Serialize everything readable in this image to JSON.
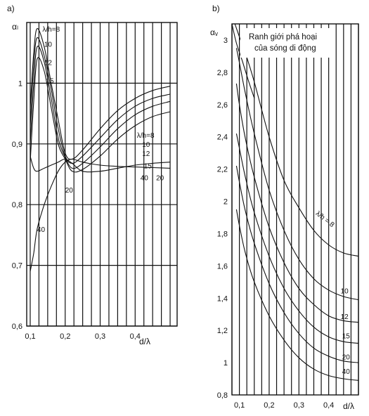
{
  "chart_data": [
    {
      "type": "line",
      "panel_label": "a)",
      "ylabel": "αₗ",
      "xlabel": "d/λ",
      "xlim": [
        0.09,
        0.52
      ],
      "ylim": [
        0.6,
        1.1
      ],
      "x_ticks": [
        0.1,
        0.2,
        0.3,
        0.4
      ],
      "x_tick_labels": [
        "0,1",
        "0,2",
        "0,3",
        "0,4"
      ],
      "y_ticks": [
        0.6,
        0.7,
        0.8,
        0.9,
        1.0
      ],
      "y_tick_labels": [
        "0,6",
        "0,7",
        "0,8",
        "0,9",
        "1"
      ],
      "x_grid": [
        0.1,
        0.125,
        0.15,
        0.175,
        0.2,
        0.225,
        0.25,
        0.275,
        0.3,
        0.325,
        0.35,
        0.375,
        0.4,
        0.425,
        0.45,
        0.475,
        0.5
      ],
      "y_grid": [
        0.6,
        0.7,
        0.8,
        0.9,
        1.0
      ],
      "grid": true,
      "family_labels": [
        "λ/h=8",
        "λ/h=8"
      ],
      "series": [
        {
          "name": "8",
          "x": [
            0.1,
            0.11,
            0.12,
            0.14,
            0.16,
            0.18,
            0.2,
            0.22,
            0.25,
            0.3,
            0.35,
            0.4,
            0.45,
            0.5
          ],
          "y": [
            0.96,
            1.05,
            1.09,
            1.06,
            1.0,
            0.94,
            0.885,
            0.875,
            0.89,
            0.925,
            0.955,
            0.975,
            0.988,
            0.995
          ]
        },
        {
          "name": "10",
          "x": [
            0.1,
            0.11,
            0.12,
            0.14,
            0.16,
            0.18,
            0.2,
            0.22,
            0.25,
            0.3,
            0.35,
            0.4,
            0.45,
            0.5
          ],
          "y": [
            0.93,
            1.03,
            1.075,
            1.045,
            0.99,
            0.925,
            0.88,
            0.868,
            0.88,
            0.91,
            0.94,
            0.962,
            0.975,
            0.982
          ]
        },
        {
          "name": "12",
          "x": [
            0.1,
            0.11,
            0.12,
            0.14,
            0.16,
            0.18,
            0.2,
            0.22,
            0.25,
            0.3,
            0.35,
            0.4,
            0.45,
            0.5
          ],
          "y": [
            0.9,
            1.0,
            1.06,
            1.035,
            0.975,
            0.91,
            0.878,
            0.86,
            0.868,
            0.895,
            0.925,
            0.948,
            0.962,
            0.97
          ]
        },
        {
          "name": "15",
          "x": [
            0.1,
            0.11,
            0.12,
            0.14,
            0.16,
            0.18,
            0.2,
            0.22,
            0.25,
            0.3,
            0.35,
            0.4,
            0.45,
            0.5
          ],
          "y": [
            0.87,
            0.97,
            1.04,
            1.02,
            0.96,
            0.9,
            0.875,
            0.855,
            0.858,
            0.88,
            0.908,
            0.93,
            0.945,
            0.953
          ]
        },
        {
          "name": "20",
          "x": [
            0.1,
            0.11,
            0.12,
            0.14,
            0.16,
            0.18,
            0.2,
            0.22,
            0.25,
            0.3,
            0.35,
            0.4,
            0.45,
            0.5
          ],
          "y": [
            0.88,
            0.86,
            0.855,
            0.86,
            0.865,
            0.87,
            0.875,
            0.868,
            0.855,
            0.855,
            0.86,
            0.865,
            0.868,
            0.87
          ]
        },
        {
          "name": "40",
          "x": [
            0.1,
            0.11,
            0.12,
            0.14,
            0.16,
            0.18,
            0.2,
            0.22,
            0.25,
            0.3,
            0.35,
            0.4,
            0.45,
            0.5
          ],
          "y": [
            0.69,
            0.72,
            0.76,
            0.8,
            0.83,
            0.855,
            0.87,
            0.875,
            0.87,
            0.865,
            0.863,
            0.862,
            0.861,
            0.86
          ]
        }
      ]
    },
    {
      "type": "line",
      "panel_label": "b)",
      "ylabel": "αᵥ",
      "xlabel": "d/λ",
      "xlim": [
        0.075,
        0.5
      ],
      "ylim": [
        0.8,
        3.1
      ],
      "x_ticks": [
        0.1,
        0.2,
        0.3,
        0.4
      ],
      "x_tick_labels": [
        "0,1",
        "0,2",
        "0,3",
        "0,4"
      ],
      "y_ticks": [
        0.8,
        1.0,
        1.2,
        1.4,
        1.6,
        1.8,
        2.0,
        2.2,
        2.4,
        2.6,
        2.8,
        3.0
      ],
      "y_tick_labels": [
        "0,8",
        "1",
        "1,2",
        "1,4",
        "1,6",
        "1,8",
        "2",
        "2,2",
        "2,4",
        "2,6",
        "2,8",
        "3"
      ],
      "x_grid": [
        0.075,
        0.1,
        0.125,
        0.15,
        0.175,
        0.2,
        0.225,
        0.25,
        0.275,
        0.3,
        0.325,
        0.35,
        0.375,
        0.4,
        0.425,
        0.45,
        0.475,
        0.5
      ],
      "y_grid": [],
      "grid": true,
      "annotation": "Ranh giới phá hoại\ncủa sóng di động",
      "family_label": "λ/h = 8",
      "series": [
        {
          "name": "envelope",
          "x": [
            0.075,
            0.09,
            0.11,
            0.13,
            0.15
          ],
          "y": [
            3.1,
            2.98,
            2.87,
            2.75,
            2.64
          ]
        },
        {
          "name": "8",
          "x": [
            0.085,
            0.1,
            0.12,
            0.15,
            0.2,
            0.25,
            0.3,
            0.35,
            0.4,
            0.45,
            0.5
          ],
          "y": [
            3.1,
            3.02,
            2.92,
            2.74,
            2.4,
            2.13,
            1.96,
            1.82,
            1.73,
            1.68,
            1.66
          ]
        },
        {
          "name": "10",
          "x": [
            0.09,
            0.1,
            0.12,
            0.15,
            0.2,
            0.25,
            0.3,
            0.35,
            0.4,
            0.45,
            0.5
          ],
          "y": [
            2.95,
            2.86,
            2.67,
            2.42,
            2.07,
            1.82,
            1.64,
            1.52,
            1.45,
            1.41,
            1.39
          ]
        },
        {
          "name": "12",
          "x": [
            0.09,
            0.1,
            0.12,
            0.15,
            0.2,
            0.25,
            0.3,
            0.35,
            0.4,
            0.45,
            0.5
          ],
          "y": [
            2.73,
            2.6,
            2.39,
            2.15,
            1.84,
            1.62,
            1.46,
            1.36,
            1.29,
            1.26,
            1.25
          ]
        },
        {
          "name": "15",
          "x": [
            0.09,
            0.1,
            0.12,
            0.15,
            0.2,
            0.25,
            0.3,
            0.35,
            0.4,
            0.45,
            0.5
          ],
          "y": [
            2.42,
            2.33,
            2.15,
            1.93,
            1.66,
            1.46,
            1.32,
            1.22,
            1.16,
            1.13,
            1.12
          ]
        },
        {
          "name": "20",
          "x": [
            0.09,
            0.1,
            0.12,
            0.15,
            0.2,
            0.25,
            0.3,
            0.35,
            0.4,
            0.45,
            0.5
          ],
          "y": [
            2.22,
            2.12,
            1.94,
            1.74,
            1.49,
            1.31,
            1.18,
            1.09,
            1.04,
            1.01,
            1.0
          ]
        },
        {
          "name": "40",
          "x": [
            0.09,
            0.1,
            0.12,
            0.15,
            0.2,
            0.25,
            0.3,
            0.35,
            0.4,
            0.45,
            0.5
          ],
          "y": [
            1.95,
            1.85,
            1.68,
            1.5,
            1.29,
            1.14,
            1.03,
            0.96,
            0.92,
            0.9,
            0.89
          ]
        }
      ]
    }
  ]
}
